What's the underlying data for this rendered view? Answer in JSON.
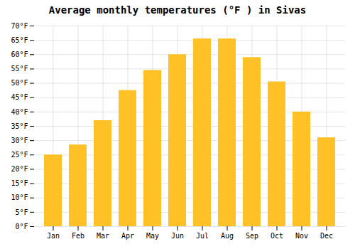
{
  "chart_data": {
    "type": "bar",
    "title": "Average monthly temperatures (°F ) in Sivas",
    "categories": [
      "Jan",
      "Feb",
      "Mar",
      "Apr",
      "May",
      "Jun",
      "Jul",
      "Aug",
      "Sep",
      "Oct",
      "Nov",
      "Dec"
    ],
    "values": [
      25,
      28.5,
      37,
      47.5,
      54.5,
      60,
      65.5,
      65.5,
      59,
      50.5,
      40,
      31
    ],
    "color": "#FFC125",
    "ylim": [
      0,
      70
    ],
    "yticks": [
      {
        "value": 0,
        "label": "0°F"
      },
      {
        "value": 5,
        "label": "5°F"
      },
      {
        "value": 10,
        "label": "10°F"
      },
      {
        "value": 15,
        "label": "15°F"
      },
      {
        "value": 20,
        "label": "20°F"
      },
      {
        "value": 25,
        "label": "25°F"
      },
      {
        "value": 30,
        "label": "30°F"
      },
      {
        "value": 35,
        "label": "35°F"
      },
      {
        "value": 40,
        "label": "40°F"
      },
      {
        "value": 45,
        "label": "45°F"
      },
      {
        "value": 50,
        "label": "50°F"
      },
      {
        "value": 55,
        "label": "55°F"
      },
      {
        "value": 60,
        "label": "60°F"
      },
      {
        "value": 65,
        "label": "65°F"
      },
      {
        "value": 70,
        "label": "70°F"
      }
    ],
    "grid": true
  }
}
